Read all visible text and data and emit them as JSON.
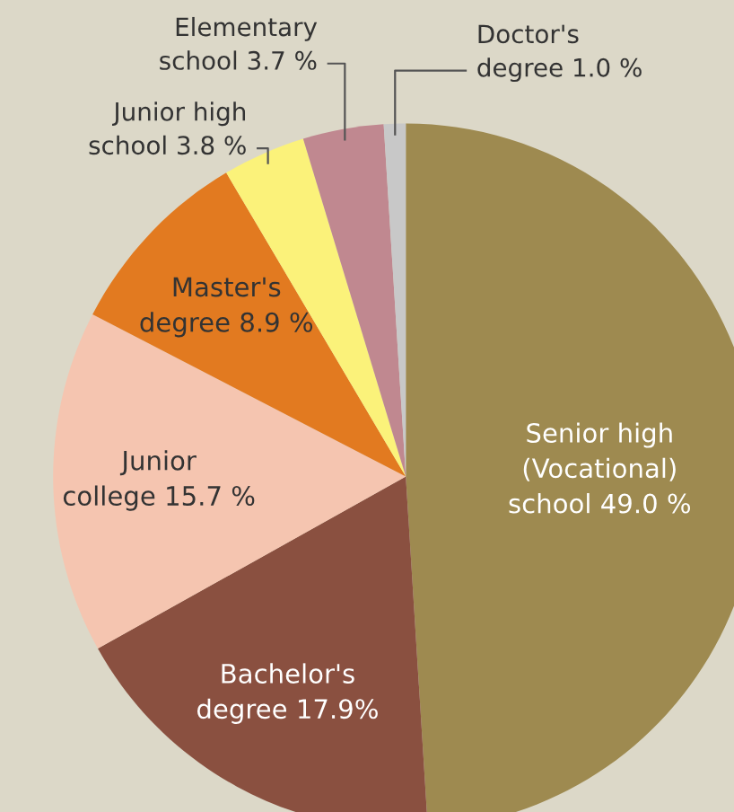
{
  "chart_data": {
    "type": "pie",
    "categories": [
      "Senior high\n(Vocational)\nschool",
      "Bachelor's\ndegree",
      "Junior\ncollege",
      "Master's\ndegree",
      "Junior high\nschool",
      "Elementary\nschool",
      "Doctor's\ndegree"
    ],
    "values": [
      49.0,
      17.9,
      15.7,
      8.9,
      3.8,
      3.7,
      1.0
    ],
    "value_labels": [
      "49.0 %",
      "17.9%",
      "15.7 %",
      "8.9 %",
      "3.8 %",
      "3.7 %",
      "1.0 %"
    ],
    "colors": [
      "#9e8a50",
      "#8a5040",
      "#f5c5b0",
      "#e27a20",
      "#fbf27a",
      "#c08890",
      "#c8c8c8"
    ]
  }
}
